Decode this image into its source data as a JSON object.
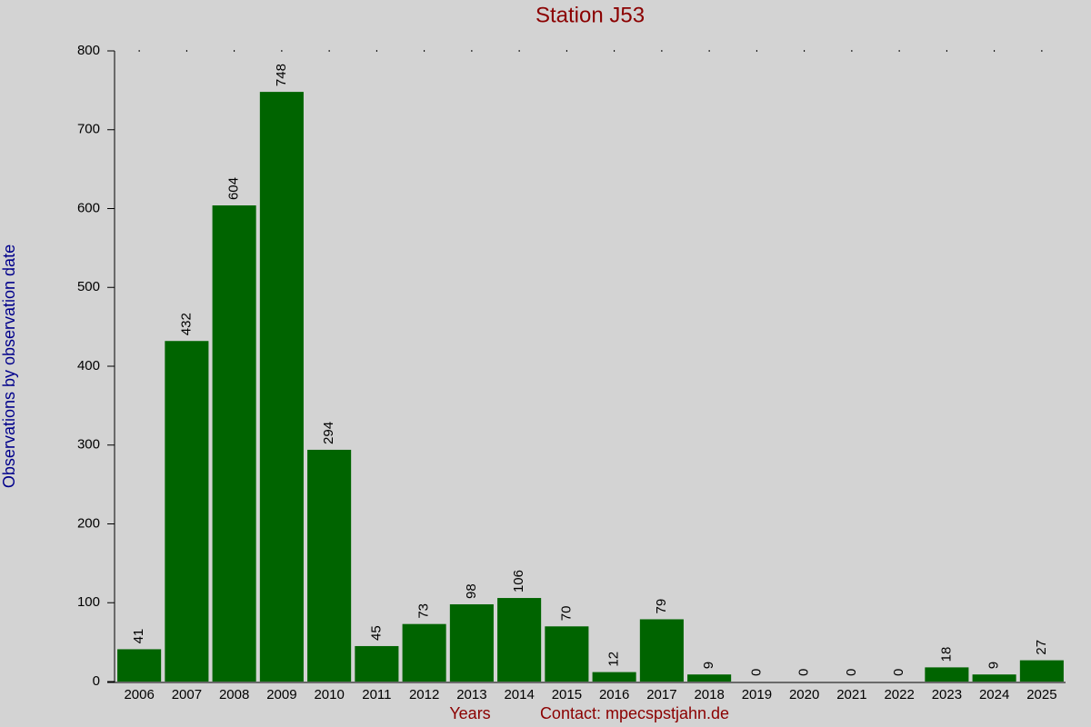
{
  "chart_data": {
    "type": "bar",
    "title": "Station J53",
    "x_label": "Years",
    "contact": "Contact: mpecspstjahn.de",
    "y_label": "Observations by observation date",
    "categories": [
      "2006",
      "2007",
      "2008",
      "2009",
      "2010",
      "2011",
      "2012",
      "2013",
      "2014",
      "2015",
      "2016",
      "2017",
      "2018",
      "2019",
      "2020",
      "2021",
      "2022",
      "2023",
      "2024",
      "2025"
    ],
    "values": [
      41,
      432,
      604,
      748,
      294,
      45,
      73,
      98,
      106,
      70,
      12,
      79,
      9,
      0,
      0,
      0,
      0,
      18,
      9,
      27
    ],
    "color": "#006400",
    "ylim": [
      0,
      800
    ],
    "yticks": [
      0,
      100,
      200,
      300,
      400,
      500,
      600,
      700,
      800
    ],
    "grid": false
  }
}
